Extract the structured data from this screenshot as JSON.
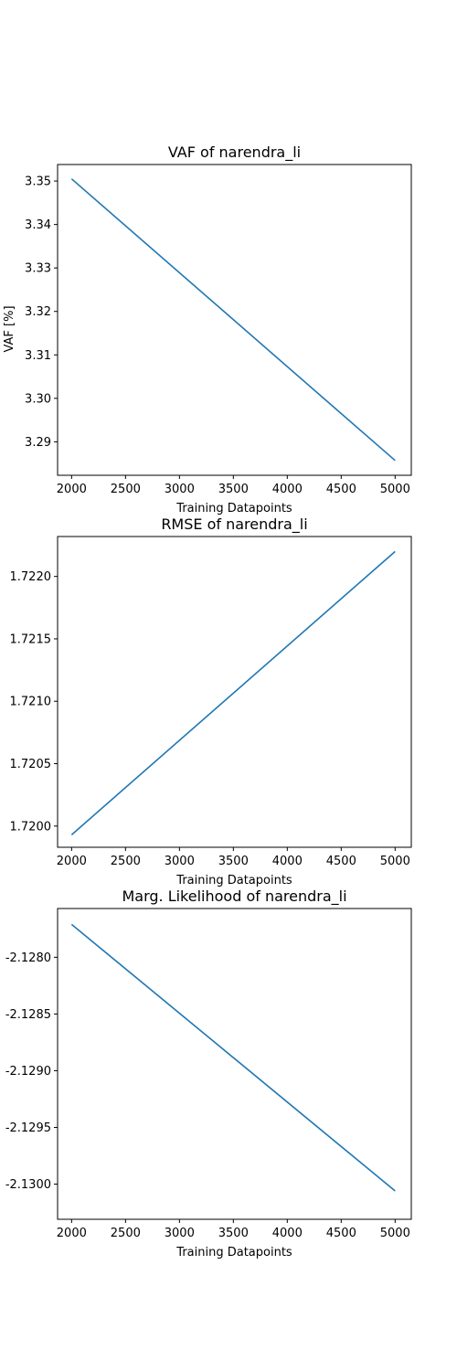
{
  "chart_data": [
    {
      "type": "line",
      "title": "VAF of narendra_li",
      "xlabel": "Training Datapoints",
      "ylabel": "VAF [%]",
      "xlim": [
        1870,
        5150
      ],
      "ylim": [
        3.2823,
        3.3538
      ],
      "xticks": [
        2000,
        2500,
        3000,
        3500,
        4000,
        4500,
        5000
      ],
      "xtick_labels": [
        "2000",
        "2500",
        "3000",
        "3500",
        "4000",
        "4500",
        "5000"
      ],
      "yticks": [
        3.29,
        3.3,
        3.31,
        3.32,
        3.33,
        3.34,
        3.35
      ],
      "ytick_labels": [
        "3.29",
        "3.30",
        "3.31",
        "3.32",
        "3.33",
        "3.34",
        "3.35"
      ],
      "grid": false,
      "color": "#1f77b4",
      "series": [
        {
          "x": [
            2000,
            5000
          ],
          "y": [
            3.3505,
            3.2857
          ]
        }
      ]
    },
    {
      "type": "line",
      "title": "RMSE of narendra_li",
      "xlabel": "Training Datapoints",
      "ylabel": "",
      "xlim": [
        1870,
        5150
      ],
      "ylim": [
        1.71983,
        1.72232
      ],
      "xticks": [
        2000,
        2500,
        3000,
        3500,
        4000,
        4500,
        5000
      ],
      "xtick_labels": [
        "2000",
        "2500",
        "3000",
        "3500",
        "4000",
        "4500",
        "5000"
      ],
      "yticks": [
        1.72,
        1.7205,
        1.721,
        1.7215,
        1.722
      ],
      "ytick_labels": [
        "1.7200",
        "1.7205",
        "1.7210",
        "1.7215",
        "1.7220"
      ],
      "grid": false,
      "color": "#1f77b4",
      "series": [
        {
          "x": [
            2000,
            5000
          ],
          "y": [
            1.71993,
            1.7222
          ]
        }
      ]
    },
    {
      "type": "line",
      "title": "Marg. Likelihood of narendra_li",
      "xlabel": "Training Datapoints",
      "ylabel": "",
      "xlim": [
        1870,
        5150
      ],
      "ylim": [
        -2.13031,
        -2.12757
      ],
      "xticks": [
        2000,
        2500,
        3000,
        3500,
        4000,
        4500,
        5000
      ],
      "xtick_labels": [
        "2000",
        "2500",
        "3000",
        "3500",
        "4000",
        "4500",
        "5000"
      ],
      "yticks": [
        -2.128,
        -2.1285,
        -2.129,
        -2.1295,
        -2.13
      ],
      "ytick_labels": [
        "-2.1280",
        "-2.1285",
        "-2.1290",
        "-2.1295",
        "-2.1300"
      ],
      "grid": false,
      "color": "#1f77b4",
      "series": [
        {
          "x": [
            2000,
            5000
          ],
          "y": [
            -2.12771,
            -2.13006
          ]
        }
      ]
    }
  ]
}
